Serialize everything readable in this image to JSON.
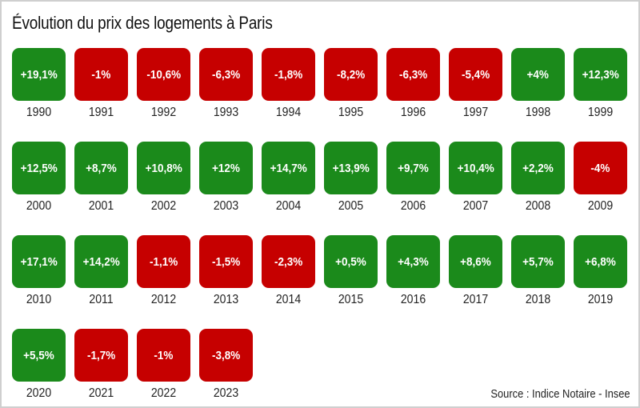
{
  "chart_data": {
    "type": "table",
    "title": "Évolution du prix des logements à Paris",
    "source": "Source : Indice Notaire - Insee",
    "colors": {
      "positive": "#1b8a1b",
      "negative": "#c60000"
    },
    "items": [
      {
        "year": "1990",
        "label": "+19,1%",
        "value": 19.1
      },
      {
        "year": "1991",
        "label": "-1%",
        "value": -1
      },
      {
        "year": "1992",
        "label": "-10,6%",
        "value": -10.6
      },
      {
        "year": "1993",
        "label": "-6,3%",
        "value": -6.3
      },
      {
        "year": "1994",
        "label": "-1,8%",
        "value": -1.8
      },
      {
        "year": "1995",
        "label": "-8,2%",
        "value": -8.2
      },
      {
        "year": "1996",
        "label": "-6,3%",
        "value": -6.3
      },
      {
        "year": "1997",
        "label": "-5,4%",
        "value": -5.4
      },
      {
        "year": "1998",
        "label": "+4%",
        "value": 4
      },
      {
        "year": "1999",
        "label": "+12,3%",
        "value": 12.3
      },
      {
        "year": "2000",
        "label": "+12,5%",
        "value": 12.5
      },
      {
        "year": "2001",
        "label": "+8,7%",
        "value": 8.7
      },
      {
        "year": "2002",
        "label": "+10,8%",
        "value": 10.8
      },
      {
        "year": "2003",
        "label": "+12%",
        "value": 12
      },
      {
        "year": "2004",
        "label": "+14,7%",
        "value": 14.7
      },
      {
        "year": "2005",
        "label": "+13,9%",
        "value": 13.9
      },
      {
        "year": "2006",
        "label": "+9,7%",
        "value": 9.7
      },
      {
        "year": "2007",
        "label": "+10,4%",
        "value": 10.4
      },
      {
        "year": "2008",
        "label": "+2,2%",
        "value": 2.2
      },
      {
        "year": "2009",
        "label": "-4%",
        "value": -4
      },
      {
        "year": "2010",
        "label": "+17,1%",
        "value": 17.1
      },
      {
        "year": "2011",
        "label": "+14,2%",
        "value": 14.2
      },
      {
        "year": "2012",
        "label": "-1,1%",
        "value": -1.1
      },
      {
        "year": "2013",
        "label": "-1,5%",
        "value": -1.5
      },
      {
        "year": "2014",
        "label": "-2,3%",
        "value": -2.3
      },
      {
        "year": "2015",
        "label": "+0,5%",
        "value": 0.5
      },
      {
        "year": "2016",
        "label": "+4,3%",
        "value": 4.3
      },
      {
        "year": "2017",
        "label": "+8,6%",
        "value": 8.6
      },
      {
        "year": "2018",
        "label": "+5,7%",
        "value": 5.7
      },
      {
        "year": "2019",
        "label": "+6,8%",
        "value": 6.8
      },
      {
        "year": "2020",
        "label": "+5,5%",
        "value": 5.5
      },
      {
        "year": "2021",
        "label": "-1,7%",
        "value": -1.7
      },
      {
        "year": "2022",
        "label": "-1%",
        "value": -1
      },
      {
        "year": "2023",
        "label": "-3,8%",
        "value": -3.8
      }
    ]
  }
}
